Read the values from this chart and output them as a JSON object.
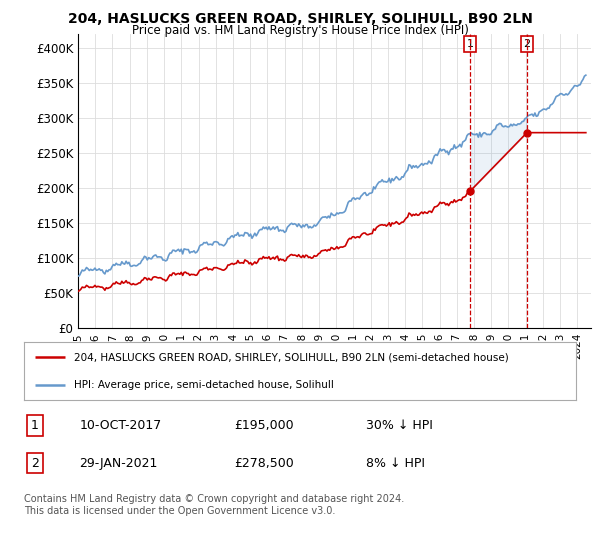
{
  "title": "204, HASLUCKS GREEN ROAD, SHIRLEY, SOLIHULL, B90 2LN",
  "subtitle": "Price paid vs. HM Land Registry's House Price Index (HPI)",
  "ylim": [
    0,
    420000
  ],
  "yticks": [
    0,
    50000,
    100000,
    150000,
    200000,
    250000,
    300000,
    350000,
    400000
  ],
  "ytick_labels": [
    "£0",
    "£50K",
    "£100K",
    "£150K",
    "£200K",
    "£250K",
    "£300K",
    "£350K",
    "£400K"
  ],
  "sale1_date_label": "10-OCT-2017",
  "sale1_price": 195000,
  "sale1_price_str": "£195,000",
  "sale1_pct": "30% ↓ HPI",
  "sale2_date_label": "29-JAN-2021",
  "sale2_price": 278500,
  "sale2_price_str": "£278,500",
  "sale2_pct": "8% ↓ HPI",
  "sale1_year": 2017.78,
  "sale2_year": 2021.08,
  "hpi_color": "#6699cc",
  "price_color": "#cc0000",
  "legend_label_price": "204, HASLUCKS GREEN ROAD, SHIRLEY, SOLIHULL, B90 2LN (semi-detached house)",
  "legend_label_hpi": "HPI: Average price, semi-detached house, Solihull",
  "footer": "Contains HM Land Registry data © Crown copyright and database right 2024.\nThis data is licensed under the Open Government Licence v3.0.",
  "background_color": "#ffffff",
  "grid_color": "#dddddd"
}
